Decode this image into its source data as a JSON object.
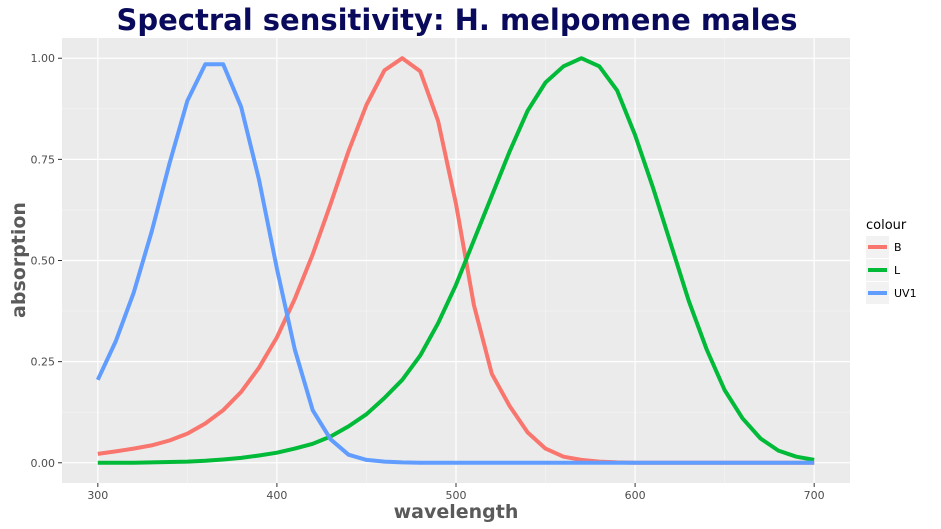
{
  "chart_data": {
    "type": "line",
    "title": "Spectral sensitivity: H. melpomene males",
    "xlabel": "wavelength",
    "ylabel": "absorption",
    "xlim": [
      280,
      720
    ],
    "ylim": [
      -0.05,
      1.05
    ],
    "x_ticks": [
      300,
      400,
      500,
      600,
      700
    ],
    "x_tick_labels": [
      "300",
      "400",
      "500",
      "600",
      "700"
    ],
    "y_ticks": [
      0,
      0.25,
      0.5,
      0.75,
      1.0
    ],
    "y_tick_labels": [
      "0.00",
      "0.25",
      "0.50",
      "0.75",
      "1.00"
    ],
    "grid": true,
    "legend": {
      "title": "colour",
      "position": "right"
    },
    "x": [
      300,
      310,
      320,
      330,
      340,
      350,
      360,
      370,
      380,
      390,
      400,
      410,
      420,
      430,
      440,
      450,
      460,
      470,
      480,
      490,
      500,
      510,
      520,
      530,
      540,
      550,
      560,
      570,
      580,
      590,
      600,
      610,
      620,
      630,
      640,
      650,
      660,
      670,
      680,
      690,
      700
    ],
    "series": [
      {
        "name": "B",
        "color": "#F8766D",
        "values": [
          0.022,
          0.028,
          0.035,
          0.043,
          0.055,
          0.072,
          0.097,
          0.13,
          0.175,
          0.235,
          0.31,
          0.405,
          0.515,
          0.64,
          0.77,
          0.885,
          0.97,
          1.0,
          0.968,
          0.845,
          0.64,
          0.39,
          0.22,
          0.14,
          0.075,
          0.035,
          0.015,
          0.007,
          0.003,
          0.001,
          0.0,
          0.0,
          0.0,
          0.0,
          0.0,
          0.0,
          0.0,
          0.0,
          0.0,
          0.0,
          0.0
        ]
      },
      {
        "name": "L",
        "color": "#00BA38",
        "values": [
          0.0,
          0.0,
          0.0,
          0.001,
          0.002,
          0.003,
          0.005,
          0.008,
          0.012,
          0.018,
          0.025,
          0.035,
          0.047,
          0.065,
          0.09,
          0.12,
          0.16,
          0.205,
          0.265,
          0.345,
          0.44,
          0.55,
          0.66,
          0.77,
          0.87,
          0.94,
          0.98,
          1.0,
          0.98,
          0.92,
          0.81,
          0.68,
          0.54,
          0.4,
          0.28,
          0.18,
          0.11,
          0.06,
          0.03,
          0.015,
          0.007
        ]
      },
      {
        "name": "UV1",
        "color": "#619CFF",
        "values": [
          0.205,
          0.3,
          0.42,
          0.57,
          0.74,
          0.895,
          0.985,
          0.985,
          0.88,
          0.7,
          0.48,
          0.28,
          0.13,
          0.058,
          0.02,
          0.007,
          0.003,
          0.001,
          0.0,
          0.0,
          0.0,
          0.0,
          0.0,
          0.0,
          0.0,
          0.0,
          0.0,
          0.0,
          0.0,
          0.0,
          0.0,
          0.0,
          0.0,
          0.0,
          0.0,
          0.0,
          0.0,
          0.0,
          0.0,
          0.0,
          0.0
        ]
      }
    ]
  }
}
